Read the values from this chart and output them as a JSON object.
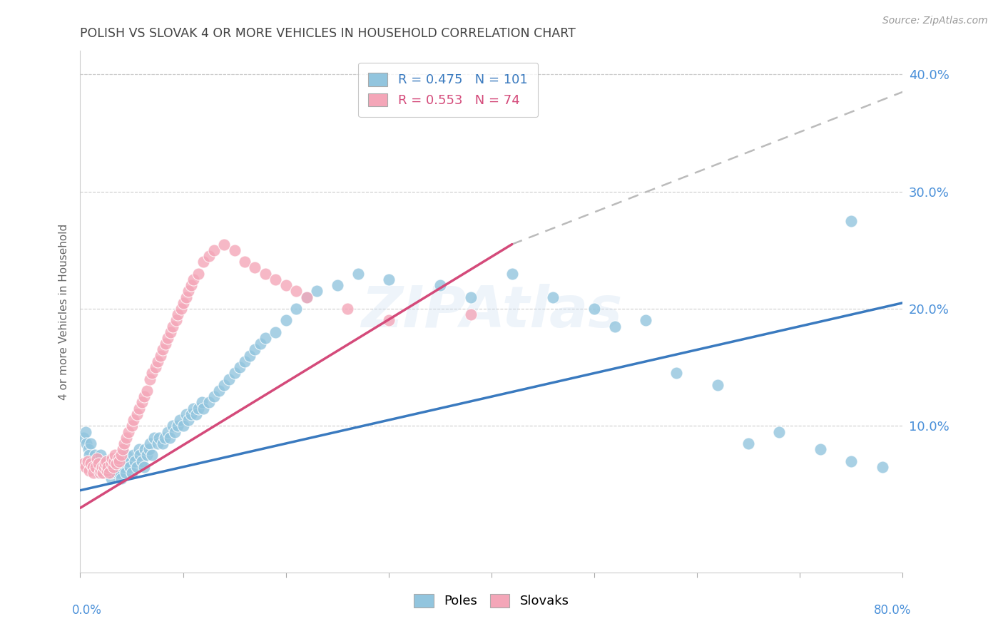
{
  "title": "POLISH VS SLOVAK 4 OR MORE VEHICLES IN HOUSEHOLD CORRELATION CHART",
  "source": "Source: ZipAtlas.com",
  "ylabel": "4 or more Vehicles in Household",
  "watermark": "ZIPAtlas",
  "poles_R": 0.475,
  "poles_N": 101,
  "slovak_R": 0.553,
  "slovak_N": 74,
  "blue_color": "#92c5de",
  "pink_color": "#f4a6b8",
  "blue_line_color": "#3a7abf",
  "pink_line_color": "#d44a7a",
  "dashed_line_color": "#bbbbbb",
  "title_color": "#444444",
  "axis_label_color": "#4a90d9",
  "background_color": "#ffffff",
  "grid_color": "#cccccc",
  "xlim": [
    0.0,
    0.8
  ],
  "ylim": [
    -0.025,
    0.42
  ],
  "yticks": [
    0.0,
    0.1,
    0.2,
    0.3,
    0.4
  ],
  "ytick_labels": [
    "",
    "10.0%",
    "20.0%",
    "30.0%",
    "40.0%"
  ],
  "poles_trend_x": [
    0.0,
    0.8
  ],
  "poles_trend_y": [
    0.045,
    0.205
  ],
  "slovak_trend_x": [
    0.0,
    0.42
  ],
  "slovak_trend_y": [
    0.03,
    0.255
  ],
  "dashed_trend_x": [
    0.42,
    0.8
  ],
  "dashed_trend_y": [
    0.255,
    0.385
  ],
  "poles_x": [
    0.003,
    0.005,
    0.006,
    0.008,
    0.009,
    0.01,
    0.011,
    0.013,
    0.014,
    0.015,
    0.016,
    0.018,
    0.02,
    0.02,
    0.022,
    0.023,
    0.025,
    0.026,
    0.028,
    0.03,
    0.03,
    0.032,
    0.033,
    0.035,
    0.036,
    0.038,
    0.04,
    0.04,
    0.042,
    0.044,
    0.045,
    0.047,
    0.048,
    0.05,
    0.052,
    0.053,
    0.055,
    0.057,
    0.058,
    0.06,
    0.062,
    0.063,
    0.065,
    0.067,
    0.068,
    0.07,
    0.072,
    0.075,
    0.077,
    0.08,
    0.082,
    0.085,
    0.087,
    0.09,
    0.092,
    0.095,
    0.097,
    0.1,
    0.103,
    0.105,
    0.108,
    0.11,
    0.113,
    0.115,
    0.118,
    0.12,
    0.125,
    0.13,
    0.135,
    0.14,
    0.145,
    0.15,
    0.155,
    0.16,
    0.165,
    0.17,
    0.175,
    0.18,
    0.19,
    0.2,
    0.21,
    0.22,
    0.23,
    0.25,
    0.27,
    0.3,
    0.35,
    0.38,
    0.42,
    0.46,
    0.5,
    0.52,
    0.55,
    0.58,
    0.62,
    0.65,
    0.68,
    0.72,
    0.75,
    0.78,
    0.75
  ],
  "poles_y": [
    0.09,
    0.095,
    0.085,
    0.08,
    0.075,
    0.085,
    0.07,
    0.065,
    0.075,
    0.07,
    0.065,
    0.06,
    0.065,
    0.075,
    0.06,
    0.065,
    0.07,
    0.06,
    0.065,
    0.055,
    0.06,
    0.065,
    0.07,
    0.06,
    0.065,
    0.06,
    0.055,
    0.07,
    0.065,
    0.06,
    0.075,
    0.07,
    0.065,
    0.06,
    0.075,
    0.07,
    0.065,
    0.08,
    0.075,
    0.07,
    0.065,
    0.08,
    0.075,
    0.08,
    0.085,
    0.075,
    0.09,
    0.085,
    0.09,
    0.085,
    0.09,
    0.095,
    0.09,
    0.1,
    0.095,
    0.1,
    0.105,
    0.1,
    0.11,
    0.105,
    0.11,
    0.115,
    0.11,
    0.115,
    0.12,
    0.115,
    0.12,
    0.125,
    0.13,
    0.135,
    0.14,
    0.145,
    0.15,
    0.155,
    0.16,
    0.165,
    0.17,
    0.175,
    0.18,
    0.19,
    0.2,
    0.21,
    0.215,
    0.22,
    0.23,
    0.225,
    0.22,
    0.21,
    0.23,
    0.21,
    0.2,
    0.185,
    0.19,
    0.145,
    0.135,
    0.085,
    0.095,
    0.08,
    0.07,
    0.065,
    0.275
  ],
  "slovaks_x": [
    0.003,
    0.005,
    0.007,
    0.009,
    0.01,
    0.012,
    0.013,
    0.015,
    0.016,
    0.018,
    0.019,
    0.02,
    0.021,
    0.022,
    0.023,
    0.024,
    0.025,
    0.026,
    0.027,
    0.028,
    0.03,
    0.031,
    0.032,
    0.033,
    0.034,
    0.035,
    0.037,
    0.038,
    0.04,
    0.041,
    0.043,
    0.045,
    0.047,
    0.05,
    0.052,
    0.055,
    0.057,
    0.06,
    0.062,
    0.065,
    0.068,
    0.07,
    0.073,
    0.075,
    0.078,
    0.08,
    0.083,
    0.085,
    0.088,
    0.09,
    0.093,
    0.095,
    0.098,
    0.1,
    0.103,
    0.105,
    0.108,
    0.11,
    0.115,
    0.12,
    0.125,
    0.13,
    0.14,
    0.15,
    0.16,
    0.17,
    0.18,
    0.19,
    0.2,
    0.21,
    0.22,
    0.26,
    0.3,
    0.38
  ],
  "slovaks_y": [
    0.068,
    0.065,
    0.07,
    0.062,
    0.068,
    0.065,
    0.06,
    0.065,
    0.072,
    0.068,
    0.06,
    0.062,
    0.065,
    0.06,
    0.065,
    0.068,
    0.07,
    0.062,
    0.065,
    0.06,
    0.068,
    0.072,
    0.065,
    0.07,
    0.075,
    0.068,
    0.072,
    0.07,
    0.075,
    0.08,
    0.085,
    0.09,
    0.095,
    0.1,
    0.105,
    0.11,
    0.115,
    0.12,
    0.125,
    0.13,
    0.14,
    0.145,
    0.15,
    0.155,
    0.16,
    0.165,
    0.17,
    0.175,
    0.18,
    0.185,
    0.19,
    0.195,
    0.2,
    0.205,
    0.21,
    0.215,
    0.22,
    0.225,
    0.23,
    0.24,
    0.245,
    0.25,
    0.255,
    0.25,
    0.24,
    0.235,
    0.23,
    0.225,
    0.22,
    0.215,
    0.21,
    0.2,
    0.19,
    0.195
  ],
  "poles_label": "Poles",
  "slovaks_label": "Slovaks"
}
